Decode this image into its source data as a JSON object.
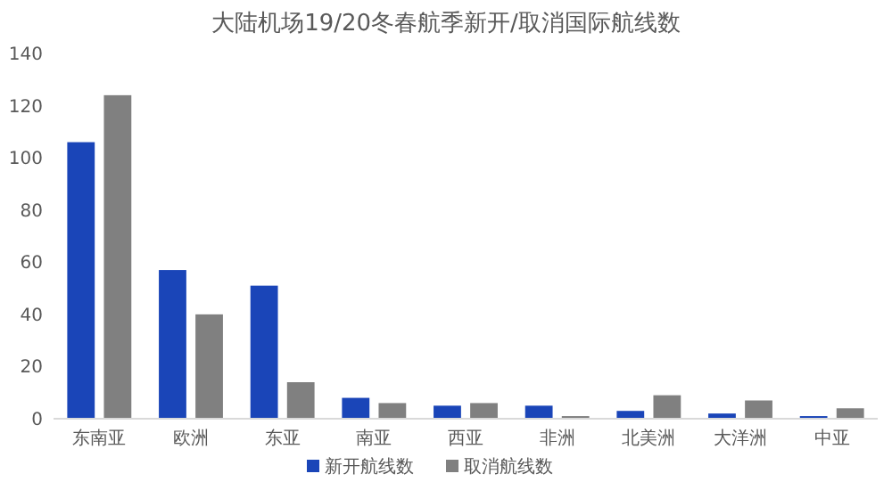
{
  "chart_data": {
    "type": "bar",
    "title": "大陆机场19/20冬春航季新开/取消国际航线数",
    "categories": [
      "东南亚",
      "欧洲",
      "东亚",
      "南亚",
      "西亚",
      "非洲",
      "北美洲",
      "大洋洲",
      "中亚"
    ],
    "series": [
      {
        "name": "新开航线数",
        "color": "#1a45b8",
        "values": [
          106,
          57,
          51,
          8,
          5,
          5,
          3,
          2,
          1
        ]
      },
      {
        "name": "取消航线数",
        "color": "#808080",
        "values": [
          124,
          40,
          14,
          6,
          6,
          1,
          9,
          7,
          4
        ]
      }
    ],
    "ylim": [
      0,
      140
    ],
    "yticks": [
      0,
      20,
      40,
      60,
      80,
      100,
      120,
      140
    ],
    "grid": false,
    "legend": "bottom"
  }
}
